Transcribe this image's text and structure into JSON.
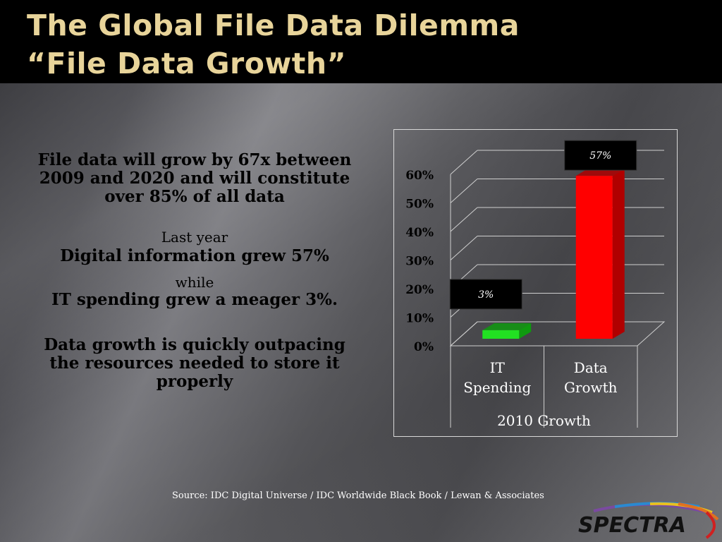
{
  "slide": {
    "title_line1": "The Global File Data Dilemma",
    "title_line2": "“File Data Growth”"
  },
  "body": {
    "para1": [
      "File data will grow by 67x between",
      "2009 and 2020 and will constitute",
      "over 85% of all data"
    ],
    "last_year": "Last year",
    "digital_growth": "Digital information grew 57%",
    "while": "while",
    "it_spending": "IT spending grew a meager 3%.",
    "conclusion": [
      "Data growth is quickly outpacing",
      "the resources needed to store it",
      "properly"
    ]
  },
  "source": "Source: IDC Digital Universe / IDC Worldwide Black Book / Lewan & Associates",
  "logo_text": "SPECTRA",
  "colors": {
    "title": "#e8d49a",
    "bar_it": "#22e022",
    "bar_data": "#ff0000"
  },
  "chart_data": {
    "type": "bar",
    "categories": [
      [
        "IT",
        "Spending"
      ],
      [
        "Data",
        "Growth"
      ]
    ],
    "values": [
      3,
      57
    ],
    "data_labels": [
      "3%",
      "57%"
    ],
    "xlabel": "2010 Growth",
    "ylabel": "",
    "ylim": [
      0,
      60
    ],
    "yticks": [
      "0%",
      "10%",
      "20%",
      "30%",
      "40%",
      "50%",
      "60%"
    ],
    "grid": true,
    "style": "3d-column"
  }
}
